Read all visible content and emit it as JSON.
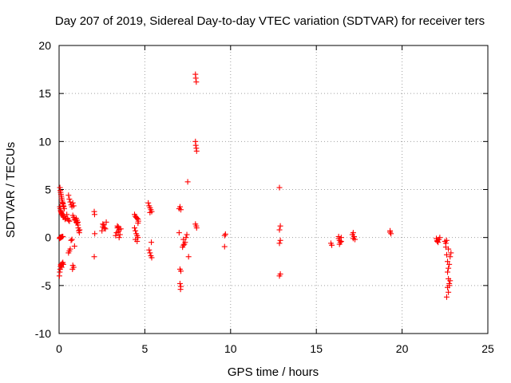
{
  "chart_data": {
    "type": "scatter",
    "title": "Day 207 of 2019, Sidereal Day-to-day VTEC variation (SDTVAR) for receiver ters",
    "xlabel": "GPS time / hours",
    "ylabel": "SDTVAR / TECUs",
    "xlim": [
      0,
      25
    ],
    "ylim": [
      -10,
      20
    ],
    "xticks": [
      0,
      5,
      10,
      15,
      20,
      25
    ],
    "yticks": [
      -10,
      -5,
      0,
      5,
      10,
      15,
      20
    ],
    "xtick_labels": [
      "0",
      "5",
      "10",
      "15",
      "20",
      "25"
    ],
    "ytick_labels": [
      "-10",
      "-5",
      "0",
      "5",
      "10",
      "15",
      "20"
    ],
    "grid": true,
    "marker": "+",
    "color": "#ff0000",
    "series": [
      {
        "name": "SDTVAR",
        "points": [
          [
            0.02,
            -4.0
          ],
          [
            0.04,
            -3.6
          ],
          [
            0.06,
            -3.3
          ],
          [
            0.08,
            -3.0
          ],
          [
            0.1,
            -2.8
          ],
          [
            0.12,
            -2.9
          ],
          [
            0.15,
            -3.1
          ],
          [
            0.18,
            -2.7
          ],
          [
            0.22,
            -2.6
          ],
          [
            0.25,
            -2.8
          ],
          [
            0.05,
            5.2
          ],
          [
            0.07,
            4.9
          ],
          [
            0.09,
            4.7
          ],
          [
            0.11,
            4.5
          ],
          [
            0.13,
            4.3
          ],
          [
            0.15,
            4.1
          ],
          [
            0.17,
            3.9
          ],
          [
            0.19,
            3.7
          ],
          [
            0.21,
            3.6
          ],
          [
            0.23,
            3.5
          ],
          [
            0.25,
            3.3
          ],
          [
            0.27,
            3.2
          ],
          [
            0.3,
            3.0
          ],
          [
            0.05,
            3.2
          ],
          [
            0.07,
            3.0
          ],
          [
            0.09,
            2.8
          ],
          [
            0.11,
            2.7
          ],
          [
            0.13,
            2.6
          ],
          [
            0.15,
            2.5
          ],
          [
            0.18,
            2.4
          ],
          [
            0.21,
            2.3
          ],
          [
            0.24,
            2.2
          ],
          [
            0.27,
            2.1
          ],
          [
            0.03,
            -0.1
          ],
          [
            0.05,
            0.0
          ],
          [
            0.07,
            -0.05
          ],
          [
            0.09,
            0.05
          ],
          [
            0.12,
            0.0
          ],
          [
            0.15,
            0.05
          ],
          [
            0.18,
            0.1
          ],
          [
            0.22,
            0.1
          ],
          [
            0.35,
            1.9
          ],
          [
            0.4,
            2.0
          ],
          [
            0.45,
            2.4
          ],
          [
            0.5,
            2.0
          ],
          [
            0.55,
            1.8
          ],
          [
            0.6,
            1.7
          ],
          [
            0.55,
            4.4
          ],
          [
            0.6,
            4.0
          ],
          [
            0.65,
            3.7
          ],
          [
            0.7,
            3.4
          ],
          [
            0.75,
            3.2
          ],
          [
            0.8,
            3.6
          ],
          [
            0.85,
            3.3
          ],
          [
            0.55,
            -1.6
          ],
          [
            0.6,
            -1.4
          ],
          [
            0.65,
            -1.2
          ],
          [
            0.7,
            -0.3
          ],
          [
            0.75,
            -0.2
          ],
          [
            0.8,
            -2.9
          ],
          [
            0.85,
            -3.1
          ],
          [
            0.78,
            -3.3
          ],
          [
            0.8,
            2.3
          ],
          [
            0.85,
            2.1
          ],
          [
            0.9,
            1.9
          ],
          [
            0.95,
            1.8
          ],
          [
            1.0,
            1.6
          ],
          [
            1.05,
            1.5
          ],
          [
            1.1,
            1.3
          ],
          [
            0.9,
            -0.9
          ],
          [
            1.0,
            2.0
          ],
          [
            1.05,
            1.8
          ],
          [
            1.1,
            1.6
          ],
          [
            1.12,
            1.0
          ],
          [
            1.15,
            0.7
          ],
          [
            1.18,
            0.5
          ],
          [
            1.2,
            0.8
          ],
          [
            2.05,
            2.7
          ],
          [
            2.07,
            2.4
          ],
          [
            2.08,
            0.4
          ],
          [
            2.05,
            -2.0
          ],
          [
            2.5,
            0.7
          ],
          [
            2.55,
            1.1
          ],
          [
            2.6,
            1.3
          ],
          [
            2.65,
            1.0
          ],
          [
            2.7,
            0.9
          ],
          [
            2.75,
            1.6
          ],
          [
            2.55,
            1.4
          ],
          [
            3.3,
            0.2
          ],
          [
            3.35,
            0.5
          ],
          [
            3.4,
            1.0
          ],
          [
            3.45,
            1.1
          ],
          [
            3.5,
            0.8
          ],
          [
            3.55,
            0.3
          ],
          [
            3.4,
            1.2
          ],
          [
            3.45,
            0.6
          ],
          [
            3.5,
            0.0
          ],
          [
            3.6,
            0.9
          ],
          [
            4.4,
            2.4
          ],
          [
            4.45,
            2.2
          ],
          [
            4.5,
            2.1
          ],
          [
            4.55,
            2.0
          ],
          [
            4.6,
            1.9
          ],
          [
            4.62,
            1.7
          ],
          [
            4.4,
            1.0
          ],
          [
            4.45,
            0.7
          ],
          [
            4.5,
            0.4
          ],
          [
            4.55,
            0.2
          ],
          [
            4.6,
            0.0
          ],
          [
            4.45,
            -0.2
          ],
          [
            4.55,
            -0.4
          ],
          [
            4.6,
            1.5
          ],
          [
            5.2,
            3.6
          ],
          [
            5.25,
            3.3
          ],
          [
            5.3,
            3.1
          ],
          [
            5.35,
            2.9
          ],
          [
            5.4,
            2.7
          ],
          [
            5.3,
            2.6
          ],
          [
            5.25,
            -1.3
          ],
          [
            5.3,
            -1.6
          ],
          [
            5.35,
            -1.9
          ],
          [
            5.4,
            -2.1
          ],
          [
            5.38,
            -0.5
          ],
          [
            7.0,
            3.0
          ],
          [
            7.05,
            3.2
          ],
          [
            7.1,
            2.9
          ],
          [
            7.0,
            0.5
          ],
          [
            7.05,
            -3.3
          ],
          [
            7.1,
            -3.5
          ],
          [
            7.05,
            -4.8
          ],
          [
            7.1,
            -5.1
          ],
          [
            7.08,
            -5.4
          ],
          [
            7.2,
            -1.0
          ],
          [
            7.25,
            -0.8
          ],
          [
            7.3,
            -0.7
          ],
          [
            7.35,
            -0.5
          ],
          [
            7.25,
            -0.2
          ],
          [
            7.4,
            0.0
          ],
          [
            7.45,
            0.3
          ],
          [
            7.5,
            5.8
          ],
          [
            7.55,
            -2.0
          ],
          [
            7.95,
            17.0
          ],
          [
            7.97,
            16.6
          ],
          [
            8.0,
            16.2
          ],
          [
            7.95,
            10.0
          ],
          [
            7.97,
            9.6
          ],
          [
            8.0,
            9.3
          ],
          [
            8.02,
            9.0
          ],
          [
            7.95,
            1.4
          ],
          [
            8.0,
            1.2
          ],
          [
            8.02,
            1.0
          ],
          [
            9.65,
            0.2
          ],
          [
            9.7,
            0.35
          ],
          [
            9.65,
            -0.95
          ],
          [
            12.85,
            5.2
          ],
          [
            12.9,
            1.2
          ],
          [
            12.85,
            0.8
          ],
          [
            12.9,
            -0.3
          ],
          [
            12.85,
            -0.6
          ],
          [
            12.9,
            -3.8
          ],
          [
            12.85,
            -4.0
          ],
          [
            15.85,
            -0.6
          ],
          [
            15.9,
            -0.8
          ],
          [
            16.3,
            -0.1
          ],
          [
            16.35,
            -0.3
          ],
          [
            16.4,
            -0.5
          ],
          [
            16.45,
            0.0
          ],
          [
            16.35,
            -0.7
          ],
          [
            16.45,
            -0.4
          ],
          [
            16.3,
            0.1
          ],
          [
            17.1,
            0.3
          ],
          [
            17.15,
            0.5
          ],
          [
            17.2,
            0.1
          ],
          [
            17.25,
            -0.2
          ],
          [
            17.15,
            -0.1
          ],
          [
            19.3,
            0.55
          ],
          [
            19.35,
            0.4
          ],
          [
            19.3,
            0.7
          ],
          [
            22.0,
            -0.1
          ],
          [
            22.05,
            -0.3
          ],
          [
            22.1,
            -0.5
          ],
          [
            22.15,
            -0.2
          ],
          [
            22.2,
            0.0
          ],
          [
            22.05,
            -0.4
          ],
          [
            22.5,
            -0.4
          ],
          [
            22.55,
            -0.6
          ],
          [
            22.6,
            -0.3
          ],
          [
            22.55,
            -1.0
          ],
          [
            22.6,
            -1.8
          ],
          [
            22.65,
            -2.5
          ],
          [
            22.7,
            -3.2
          ],
          [
            22.75,
            -2.8
          ],
          [
            22.65,
            -3.6
          ],
          [
            22.7,
            -4.3
          ],
          [
            22.75,
            -4.8
          ],
          [
            22.8,
            -4.5
          ],
          [
            22.65,
            -5.2
          ],
          [
            22.7,
            -5.7
          ],
          [
            22.6,
            -6.2
          ],
          [
            22.75,
            -5.0
          ],
          [
            22.8,
            -2.0
          ],
          [
            22.85,
            -1.6
          ],
          [
            22.7,
            -1.2
          ]
        ]
      }
    ]
  }
}
